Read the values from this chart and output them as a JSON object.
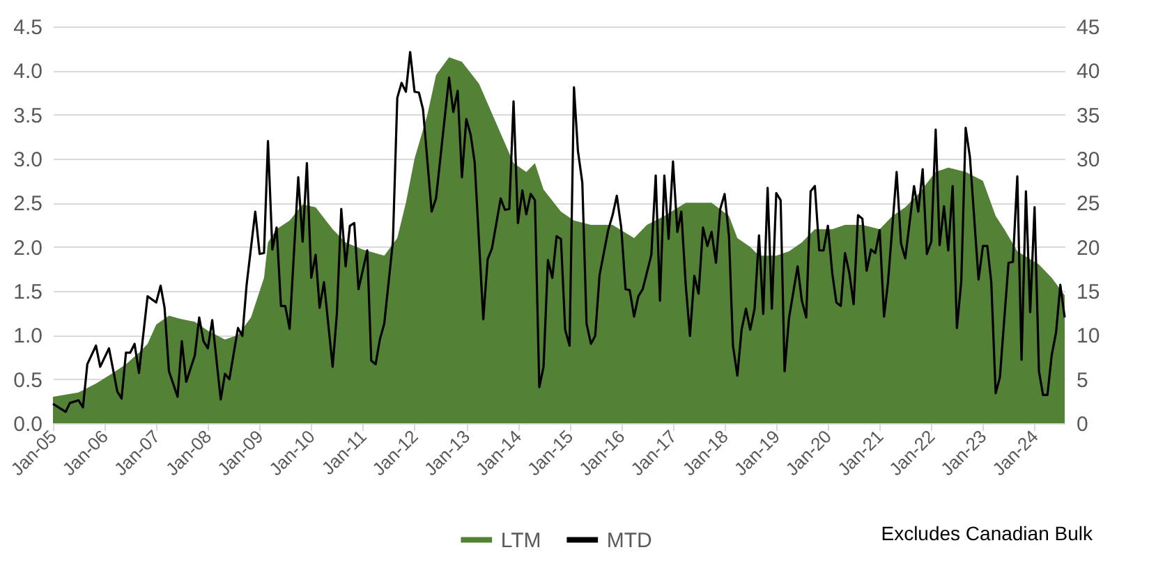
{
  "chart_data": {
    "type": "area",
    "xlim": [
      "2005-01",
      "2024-08"
    ],
    "xticks": [
      {
        "value": "2005-01",
        "label": "Jan-05"
      },
      {
        "value": "2006-01",
        "label": "Jan-06"
      },
      {
        "value": "2007-01",
        "label": "Jan-07"
      },
      {
        "value": "2008-01",
        "label": "Jan-08"
      },
      {
        "value": "2009-01",
        "label": "Jan-09"
      },
      {
        "value": "2010-01",
        "label": "Jan-10"
      },
      {
        "value": "2011-01",
        "label": "Jan-11"
      },
      {
        "value": "2012-01",
        "label": "Jan-12"
      },
      {
        "value": "2013-01",
        "label": "Jan-13"
      },
      {
        "value": "2014-01",
        "label": "Jan-14"
      },
      {
        "value": "2015-01",
        "label": "Jan-15"
      },
      {
        "value": "2016-01",
        "label": "Jan-16"
      },
      {
        "value": "2017-01",
        "label": "Jan-17"
      },
      {
        "value": "2018-01",
        "label": "Jan-18"
      },
      {
        "value": "2019-01",
        "label": "Jan-19"
      },
      {
        "value": "2020-01",
        "label": "Jan-20"
      },
      {
        "value": "2021-01",
        "label": "Jan-21"
      },
      {
        "value": "2022-01",
        "label": "Jan-22"
      },
      {
        "value": "2023-01",
        "label": "Jan-23"
      },
      {
        "value": "2024-01",
        "label": "Jan-24"
      }
    ],
    "ylim": [
      0,
      4.5
    ],
    "yticks": [
      {
        "value": 0,
        "label": "0.0"
      },
      0.5,
      {
        "value": 1,
        "label": "1.0"
      },
      1.5,
      {
        "value": 2,
        "label": "2.0"
      },
      2.5,
      {
        "value": 3,
        "label": "3.0"
      },
      3.5,
      {
        "value": 4,
        "label": "4.0"
      },
      4.5
    ],
    "y2lim": [
      0,
      45
    ],
    "y2ticks": [
      0,
      5,
      10,
      15,
      20,
      25,
      30,
      35,
      40,
      45
    ],
    "grid": "y",
    "legend": "bottom",
    "annotations": [
      "Excludes Canadian Bulk"
    ],
    "series": [
      {
        "name": "LTM",
        "color": "#538135",
        "x": [
          "2005-01",
          "2005-07",
          "2005-11",
          "2006-03",
          "2006-06",
          "2006-09",
          "2006-11",
          "2007-01",
          "2007-04",
          "2007-07",
          "2007-10",
          "2008-01",
          "2008-05",
          "2008-08",
          "2008-11",
          "2009-02",
          "2009-03",
          "2009-05",
          "2009-08",
          "2009-11",
          "2010-02",
          "2010-06",
          "2010-09",
          "2011-01",
          "2011-06",
          "2011-09",
          "2011-11",
          "2012-01",
          "2012-04",
          "2012-06",
          "2012-09",
          "2012-12",
          "2013-04",
          "2013-08",
          "2013-12",
          "2014-03",
          "2014-05",
          "2014-07",
          "2014-11",
          "2015-02",
          "2015-06",
          "2015-11",
          "2016-04",
          "2016-07",
          "2016-11",
          "2017-04",
          "2017-10",
          "2018-02",
          "2018-04",
          "2018-07",
          "2018-09",
          "2019-01",
          "2019-04",
          "2019-07",
          "2019-10",
          "2020-02",
          "2020-05",
          "2020-09",
          "2021-01",
          "2021-04",
          "2021-07",
          "2021-10",
          "2022-02",
          "2022-05",
          "2022-09",
          "2023-01",
          "2023-04",
          "2023-06",
          "2023-09",
          "2024-02",
          "2024-05",
          "2024-08"
        ],
        "values": [
          0.3,
          0.35,
          0.45,
          0.57,
          0.67,
          0.8,
          0.9,
          1.12,
          1.22,
          1.18,
          1.15,
          1.05,
          0.95,
          1.0,
          1.2,
          1.65,
          2.05,
          2.2,
          2.3,
          2.48,
          2.45,
          2.2,
          2.05,
          1.97,
          1.9,
          2.1,
          2.5,
          3.0,
          3.5,
          3.95,
          4.15,
          4.1,
          3.85,
          3.4,
          2.95,
          2.85,
          2.95,
          2.65,
          2.4,
          2.3,
          2.25,
          2.25,
          2.1,
          2.25,
          2.35,
          2.5,
          2.5,
          2.35,
          2.1,
          2.0,
          1.9,
          1.9,
          1.95,
          2.05,
          2.2,
          2.2,
          2.25,
          2.25,
          2.2,
          2.35,
          2.45,
          2.6,
          2.85,
          2.9,
          2.85,
          2.75,
          2.35,
          2.2,
          1.95,
          1.8,
          1.65,
          1.45
        ]
      },
      {
        "name": "MTD",
        "type": "line",
        "color": "#000000",
        "axis": "y2",
        "x": [
          "2005-01",
          "2005-04",
          "2005-05",
          "2005-07",
          "2005-08",
          "2005-09",
          "2005-11",
          "2005-12",
          "2006-02",
          "2006-04",
          "2006-05",
          "2006-06",
          "2006-07",
          "2006-08",
          "2006-09",
          "2006-11",
          "2007-01",
          "2007-02",
          "2007-03",
          "2007-04",
          "2007-06",
          "2007-07",
          "2007-08",
          "2007-10",
          "2007-11",
          "2007-12",
          "2008-01",
          "2008-02",
          "2008-04",
          "2008-05",
          "2008-06",
          "2008-08",
          "2008-09",
          "2008-10",
          "2008-12",
          "2009-01",
          "2009-02",
          "2009-03",
          "2009-04",
          "2009-05",
          "2009-06",
          "2009-07",
          "2009-08",
          "2009-10",
          "2009-11",
          "2009-12",
          "2010-01",
          "2010-02",
          "2010-03",
          "2010-04",
          "2010-06",
          "2010-07",
          "2010-08",
          "2010-09",
          "2010-10",
          "2010-11",
          "2010-12",
          "2011-02",
          "2011-03",
          "2011-04",
          "2011-05",
          "2011-06",
          "2011-08",
          "2011-09",
          "2011-10",
          "2011-11",
          "2011-12",
          "2012-01",
          "2012-02",
          "2012-03",
          "2012-05",
          "2012-06",
          "2012-09",
          "2012-10",
          "2012-11",
          "2012-12",
          "2013-01",
          "2013-02",
          "2013-03",
          "2013-05",
          "2013-06",
          "2013-07",
          "2013-09",
          "2013-10",
          "2013-11",
          "2013-12",
          "2014-01",
          "2014-02",
          "2014-03",
          "2014-04",
          "2014-05",
          "2014-06",
          "2014-07",
          "2014-08",
          "2014-09",
          "2014-10",
          "2014-11",
          "2014-12",
          "2015-01",
          "2015-02",
          "2015-03",
          "2015-04",
          "2015-05",
          "2015-06",
          "2015-07",
          "2015-08",
          "2015-10",
          "2015-11",
          "2015-12",
          "2016-01",
          "2016-02",
          "2016-03",
          "2016-04",
          "2016-05",
          "2016-06",
          "2016-08",
          "2016-09",
          "2016-10",
          "2016-11",
          "2016-12",
          "2017-01",
          "2017-02",
          "2017-03",
          "2017-04",
          "2017-05",
          "2017-06",
          "2017-07",
          "2017-08",
          "2017-09",
          "2017-10",
          "2017-11",
          "2017-12",
          "2018-01",
          "2018-02",
          "2018-03",
          "2018-04",
          "2018-05",
          "2018-06",
          "2018-07",
          "2018-08",
          "2018-09",
          "2018-10",
          "2018-11",
          "2018-12",
          "2019-01",
          "2019-02",
          "2019-03",
          "2019-04",
          "2019-06",
          "2019-07",
          "2019-08",
          "2019-09",
          "2019-10",
          "2019-11",
          "2019-12",
          "2020-01",
          "2020-02",
          "2020-03",
          "2020-04",
          "2020-05",
          "2020-06",
          "2020-07",
          "2020-08",
          "2020-09",
          "2020-10",
          "2020-11",
          "2020-12",
          "2021-01",
          "2021-02",
          "2021-03",
          "2021-05",
          "2021-06",
          "2021-07",
          "2021-09",
          "2021-10",
          "2021-11",
          "2021-12",
          "2022-01",
          "2022-02",
          "2022-03",
          "2022-04",
          "2022-05",
          "2022-06",
          "2022-07",
          "2022-08",
          "2022-09",
          "2022-10",
          "2022-12",
          "2023-01",
          "2023-02",
          "2023-03",
          "2023-04",
          "2023-05",
          "2023-07",
          "2023-08",
          "2023-09",
          "2023-10",
          "2023-11",
          "2023-12",
          "2024-01",
          "2024-02",
          "2024-03",
          "2024-04",
          "2024-05",
          "2024-06",
          "2024-07",
          "2024-08"
        ],
        "values": [
          2.2,
          1.3,
          2.3,
          2.6,
          1.8,
          6.7,
          8.8,
          6.4,
          8.5,
          3.6,
          2.8,
          8,
          8,
          9,
          5.7,
          14.4,
          13.7,
          15.6,
          13.1,
          5.9,
          3,
          9.3,
          4.7,
          7.7,
          12,
          9.3,
          8.5,
          11.7,
          2.7,
          5.6,
          5,
          10.8,
          9.9,
          15.7,
          24,
          19.2,
          19.3,
          32,
          19.7,
          22.2,
          13.3,
          13.3,
          10.7,
          27.9,
          20.6,
          29.5,
          16.5,
          19.1,
          13.1,
          16,
          6.4,
          12.4,
          24.3,
          17.8,
          22.4,
          22.7,
          15.2,
          19.6,
          7.1,
          6.7,
          9.5,
          11.3,
          20.6,
          36.9,
          38.6,
          37.6,
          42.1,
          37.6,
          37.5,
          35.6,
          24,
          25.5,
          39.2,
          35.3,
          37.7,
          27.9,
          34.5,
          32.7,
          29.6,
          11.8,
          18.6,
          19.8,
          25.5,
          24.2,
          24.3,
          36.5,
          22.7,
          26.4,
          23.7,
          26,
          25.3,
          4.1,
          6.4,
          18.5,
          16.5,
          21.2,
          20.9,
          10.6,
          8.8,
          38.1,
          30.9,
          27.3,
          11.3,
          9,
          9.9,
          16.8,
          21.9,
          23.6,
          25.8,
          22.2,
          15.2,
          15.1,
          12.1,
          14.4,
          15.2,
          19.1,
          28.1,
          13.9,
          28.1,
          20.9,
          29.7,
          21.7,
          24,
          15.7,
          9.9,
          16.7,
          14.7,
          22.2,
          20.1,
          21.7,
          18.2,
          24.3,
          26,
          21.2,
          8.8,
          5.4,
          10.6,
          13,
          10.6,
          13,
          21.3,
          12.4,
          26.7,
          13,
          26.1,
          25.3,
          5.9,
          11.9,
          17.8,
          13.9,
          12,
          26.3,
          26.9,
          19.6,
          19.6,
          22.4,
          17,
          13.7,
          13.3,
          19.3,
          17,
          13.5,
          23.6,
          23.2,
          17.3,
          19.7,
          19.3,
          21.9,
          12.1,
          16,
          28.5,
          20.4,
          18.7,
          26.9,
          24,
          28.8,
          19.2,
          20.6,
          33.3,
          20.2,
          24.6,
          19.6,
          26.9,
          10.8,
          16.1,
          33.5,
          30.2,
          16.3,
          20.1,
          20.1,
          16,
          3.4,
          5.2,
          18.2,
          18.3,
          28,
          7.2,
          26.3,
          12.6,
          24.5,
          5.9,
          3.2,
          3.2,
          7.7,
          10.3,
          15.7,
          12
        ]
      }
    ]
  }
}
